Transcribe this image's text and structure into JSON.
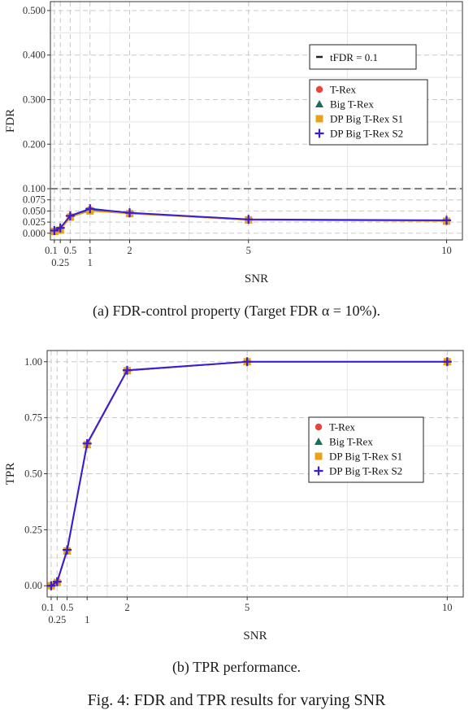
{
  "figure_caption": "Fig. 4: FDR and TPR results for varying SNR",
  "colors": {
    "T-Rex": "#e8463a",
    "Big T-Rex": "#1f6b5a",
    "DP Big T-Rex S1": "#e8a31a",
    "DP Big T-Rex S2": "#3a1bd6",
    "target_line": "#7f7f7f"
  },
  "chart_data": [
    {
      "type": "line",
      "caption": "(a) FDR-control property (Target FDR α = 10%).",
      "xlabel": "SNR",
      "ylabel": "FDR",
      "x": [
        0.1,
        0.25,
        0.5,
        1,
        2,
        5,
        10
      ],
      "xlim": [
        0,
        10.4
      ],
      "ylim": [
        -0.015,
        0.52
      ],
      "xticks_top": [
        "0.1",
        "0.5",
        "1",
        "2",
        "5",
        "10"
      ],
      "xticks_top_values": [
        0.1,
        0.5,
        1,
        2,
        5,
        10
      ],
      "xticks_bottom": [
        "0.25",
        "1"
      ],
      "xticks_bottom_values": [
        0.25,
        1
      ],
      "yticks": [
        0.0,
        0.025,
        0.05,
        0.075,
        0.1,
        0.2,
        0.3,
        0.4,
        0.5
      ],
      "ytick_labels": [
        "0.000",
        "0.025",
        "0.050",
        "0.075",
        "0.100",
        "0.200",
        "0.300",
        "0.400",
        "0.500"
      ],
      "grid": true,
      "target_line": {
        "label": "tFDR = 0.1",
        "value": 0.1
      },
      "legend_position": "right",
      "series": [
        {
          "name": "T-Rex",
          "values": [
            0.004,
            0.008,
            0.038,
            0.053,
            0.045,
            0.03,
            0.028
          ]
        },
        {
          "name": "Big T-Rex",
          "values": [
            0.004,
            0.008,
            0.038,
            0.053,
            0.045,
            0.03,
            0.028
          ]
        },
        {
          "name": "DP Big T-Rex S1",
          "values": [
            0.004,
            0.007,
            0.036,
            0.05,
            0.044,
            0.03,
            0.027
          ]
        },
        {
          "name": "DP Big T-Rex S2",
          "values": [
            0.006,
            0.012,
            0.039,
            0.055,
            0.046,
            0.031,
            0.029
          ]
        }
      ]
    },
    {
      "type": "line",
      "caption": "(b) TPR performance.",
      "xlabel": "SNR",
      "ylabel": "TPR",
      "x": [
        0.1,
        0.25,
        0.5,
        1,
        2,
        5,
        10
      ],
      "xlim": [
        0,
        10.4
      ],
      "ylim": [
        -0.05,
        1.05
      ],
      "xticks_top": [
        "0.1",
        "0.5",
        "2",
        "5",
        "10"
      ],
      "xticks_top_values": [
        0.1,
        0.5,
        2,
        5,
        10
      ],
      "xticks_bottom": [
        "0.25",
        "1"
      ],
      "xticks_bottom_values": [
        0.25,
        1
      ],
      "yticks": [
        0.0,
        0.25,
        0.5,
        0.75,
        1.0
      ],
      "ytick_labels": [
        "0.00",
        "0.25",
        "0.50",
        "0.75",
        "1.00"
      ],
      "grid": true,
      "legend_position": "right",
      "series": [
        {
          "name": "T-Rex",
          "values": [
            0.0,
            0.015,
            0.155,
            0.63,
            0.96,
            1.0,
            1.0
          ]
        },
        {
          "name": "Big T-Rex",
          "values": [
            0.0,
            0.015,
            0.155,
            0.63,
            0.96,
            1.0,
            1.0
          ]
        },
        {
          "name": "DP Big T-Rex S1",
          "values": [
            0.0,
            0.015,
            0.155,
            0.63,
            0.96,
            1.0,
            1.0
          ]
        },
        {
          "name": "DP Big T-Rex S2",
          "values": [
            0.0,
            0.018,
            0.16,
            0.635,
            0.962,
            1.0,
            1.0
          ]
        }
      ]
    }
  ]
}
